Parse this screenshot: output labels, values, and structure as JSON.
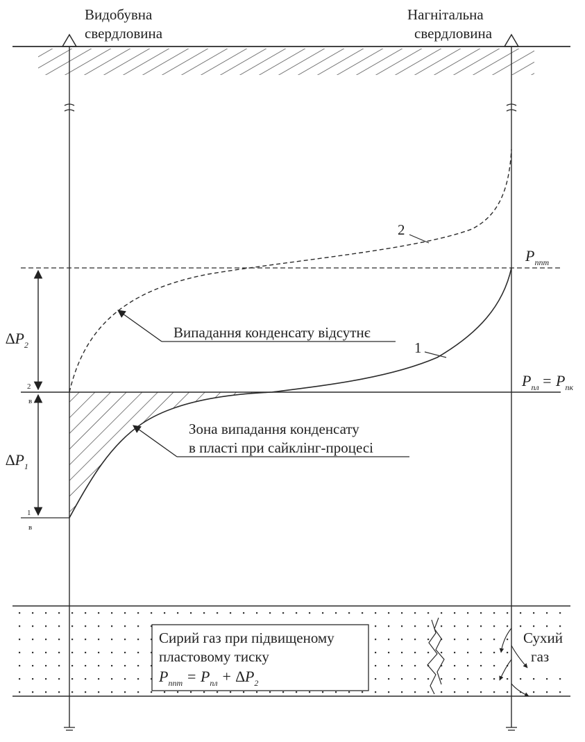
{
  "wells": {
    "production": [
      "Видобувна",
      "свердловина"
    ],
    "injection": [
      "Нагнітальна",
      "свердловина"
    ]
  },
  "curves": {
    "curve_1_number": "1",
    "curve_2_number": "2"
  },
  "pressure_labels": {
    "p_ppt": {
      "main": "P",
      "sub": "ппт"
    },
    "p_pl": {
      "main": "P",
      "sub": "пл",
      "eq": "= P",
      "sub2": "пк"
    }
  },
  "deltas": {
    "delta_p2": {
      "main": "∆P",
      "sub": "2"
    },
    "delta_p1": {
      "main": "∆P",
      "sub": "1"
    }
  },
  "small_marks": {
    "upper": {
      "num": "2",
      "sub": "в"
    },
    "lower": {
      "num": "1",
      "sub": "в"
    }
  },
  "annotations": {
    "no_condensate": "Випадання конденсату відсутнє",
    "condensate_zone": [
      "Зона випадання конденсату",
      "в пласті при сайклінг-процесі"
    ]
  },
  "reservoir": {
    "box_lines": [
      "Сирий газ при підвищеному",
      "пластовому тиску"
    ],
    "formula": {
      "p1": "P",
      "s1": "ппт",
      "eq1": " = P",
      "s2": "пл",
      "plus": " + ∆P",
      "s3": "2"
    },
    "dry_gas": [
      "Сухий",
      "газ"
    ]
  },
  "colors": {
    "ink": "#2a2a2a",
    "background": "#ffffff"
  }
}
